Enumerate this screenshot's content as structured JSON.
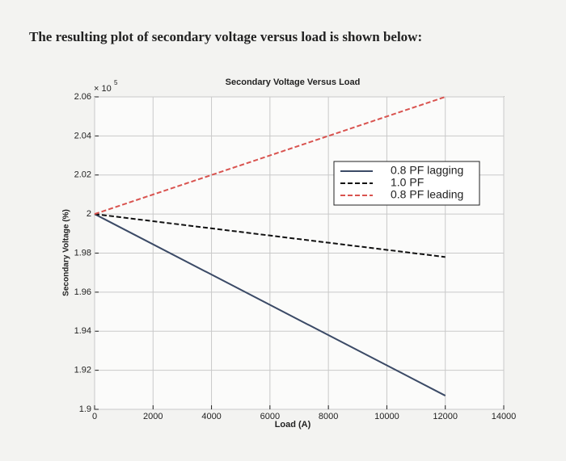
{
  "heading": "The resulting plot of secondary voltage versus load is shown below:",
  "chart_data": {
    "type": "line",
    "title": "Secondary Voltage Versus Load",
    "x_label": "Load (A)",
    "y_label": "Secondary Voltage (%)",
    "y_multiplier": "× 10",
    "y_multiplier_exp": "5",
    "x": [
      0,
      12000
    ],
    "xlim": [
      0,
      14000
    ],
    "xticks": [
      0,
      2000,
      4000,
      6000,
      8000,
      10000,
      12000,
      14000
    ],
    "ylim": [
      1.9,
      2.06
    ],
    "yticks": [
      1.9,
      1.92,
      1.94,
      1.96,
      1.98,
      2,
      2.02,
      2.04,
      2.06
    ],
    "grid": true,
    "legend": "upper right",
    "series": [
      {
        "name": "0.8 PF lagging",
        "color": "#3b4a66",
        "dash": "solid",
        "values": [
          2,
          1.907
        ]
      },
      {
        "name": "1.0 PF",
        "color": "#111111",
        "dash": "dashed",
        "values": [
          2,
          1.978
        ]
      },
      {
        "name": "0.8 PF leading",
        "color": "#d9534f",
        "dash": "dashed",
        "values": [
          2,
          2.06
        ]
      }
    ]
  }
}
